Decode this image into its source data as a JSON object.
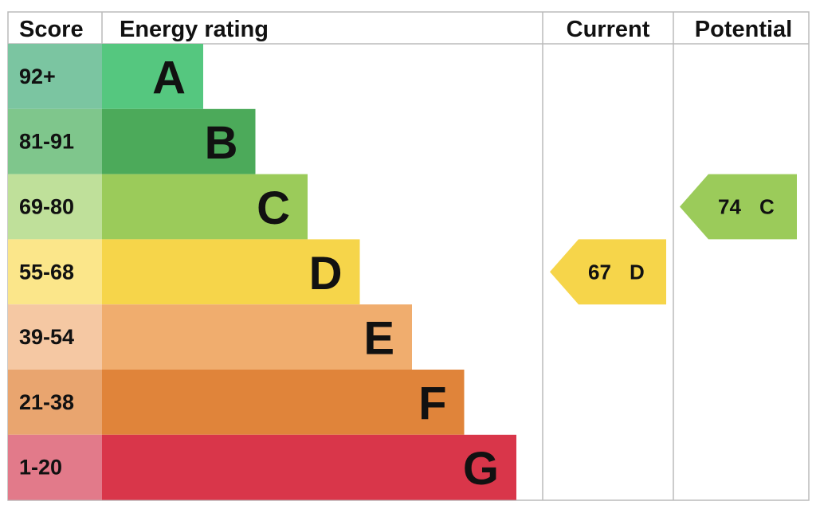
{
  "header": {
    "score": "Score",
    "rating": "Energy rating",
    "current": "Current",
    "potential": "Potential"
  },
  "bands": [
    {
      "score": "92+",
      "letter": "A",
      "color": "#55c77f",
      "score_color": "#7bc5a1"
    },
    {
      "score": "81-91",
      "letter": "B",
      "color": "#4caa5a",
      "score_color": "#7fc68c"
    },
    {
      "score": "69-80",
      "letter": "C",
      "color": "#9bcb5a",
      "score_color": "#bfe09a"
    },
    {
      "score": "55-68",
      "letter": "D",
      "color": "#f6d54a",
      "score_color": "#fbe68a"
    },
    {
      "score": "39-54",
      "letter": "E",
      "color": "#f0ad6e",
      "score_color": "#f5c8a3"
    },
    {
      "score": "21-38",
      "letter": "F",
      "color": "#e0843a",
      "score_color": "#e9a56f"
    },
    {
      "score": "1-20",
      "letter": "G",
      "color": "#d9364a",
      "score_color": "#e27a8a"
    }
  ],
  "current": {
    "value": 67,
    "letter": "D"
  },
  "potential": {
    "value": 74,
    "letter": "C"
  }
}
